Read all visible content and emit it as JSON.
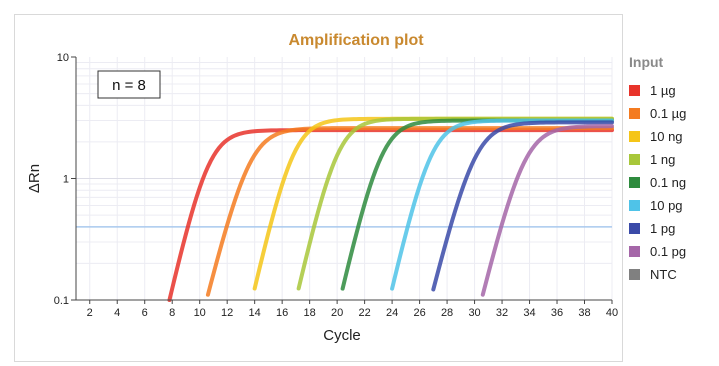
{
  "chart_data": {
    "type": "line",
    "title": "Amplification plot",
    "xlabel": "Cycle",
    "ylabel": "ΔRn",
    "y_scale": "log",
    "xlim": [
      1,
      40
    ],
    "ylim": [
      0.1,
      10
    ],
    "x_ticks": [
      2,
      4,
      6,
      8,
      10,
      12,
      14,
      16,
      18,
      20,
      22,
      24,
      26,
      28,
      30,
      32,
      34,
      36,
      38,
      40
    ],
    "y_ticks": [
      {
        "value": 0.1,
        "label": "0.1"
      },
      {
        "value": 1,
        "label": "1"
      },
      {
        "value": 10,
        "label": "10"
      }
    ],
    "grid": true,
    "annotation": "n = 8",
    "threshold": 0.4,
    "legend_title": "Input",
    "legend_position": "right",
    "series": [
      {
        "name": "1 µg",
        "color": "#e8332a",
        "midpoint_cycle": 10.6,
        "plateau": 2.5,
        "crosses_01_at": 7.8
      },
      {
        "name": "0.1 µg",
        "color": "#f47b20",
        "midpoint_cycle": 13.6,
        "plateau": 2.6,
        "crosses_01_at": 10.5
      },
      {
        "name": "10 ng",
        "color": "#f5c518",
        "midpoint_cycle": 16.8,
        "plateau": 3.1,
        "crosses_01_at": 13.8
      },
      {
        "name": "1 ng",
        "color": "#a8c73a",
        "midpoint_cycle": 20.0,
        "plateau": 3.1,
        "crosses_01_at": 17.0
      },
      {
        "name": "0.1 ng",
        "color": "#2e8b3e",
        "midpoint_cycle": 23.2,
        "plateau": 3.0,
        "crosses_01_at": 20.2
      },
      {
        "name": "10 pg",
        "color": "#4fc3e8",
        "midpoint_cycle": 26.8,
        "plateau": 3.0,
        "crosses_01_at": 23.8
      },
      {
        "name": "1 pg",
        "color": "#3a4aa8",
        "midpoint_cycle": 30.0,
        "plateau": 2.9,
        "crosses_01_at": 26.8
      },
      {
        "name": "0.1 pg",
        "color": "#a566a8",
        "midpoint_cycle": 33.6,
        "plateau": 2.7,
        "crosses_01_at": 30.5
      },
      {
        "name": "NTC",
        "color": "#808080",
        "midpoint_cycle": null,
        "plateau": null,
        "crosses_01_at": null
      }
    ]
  }
}
